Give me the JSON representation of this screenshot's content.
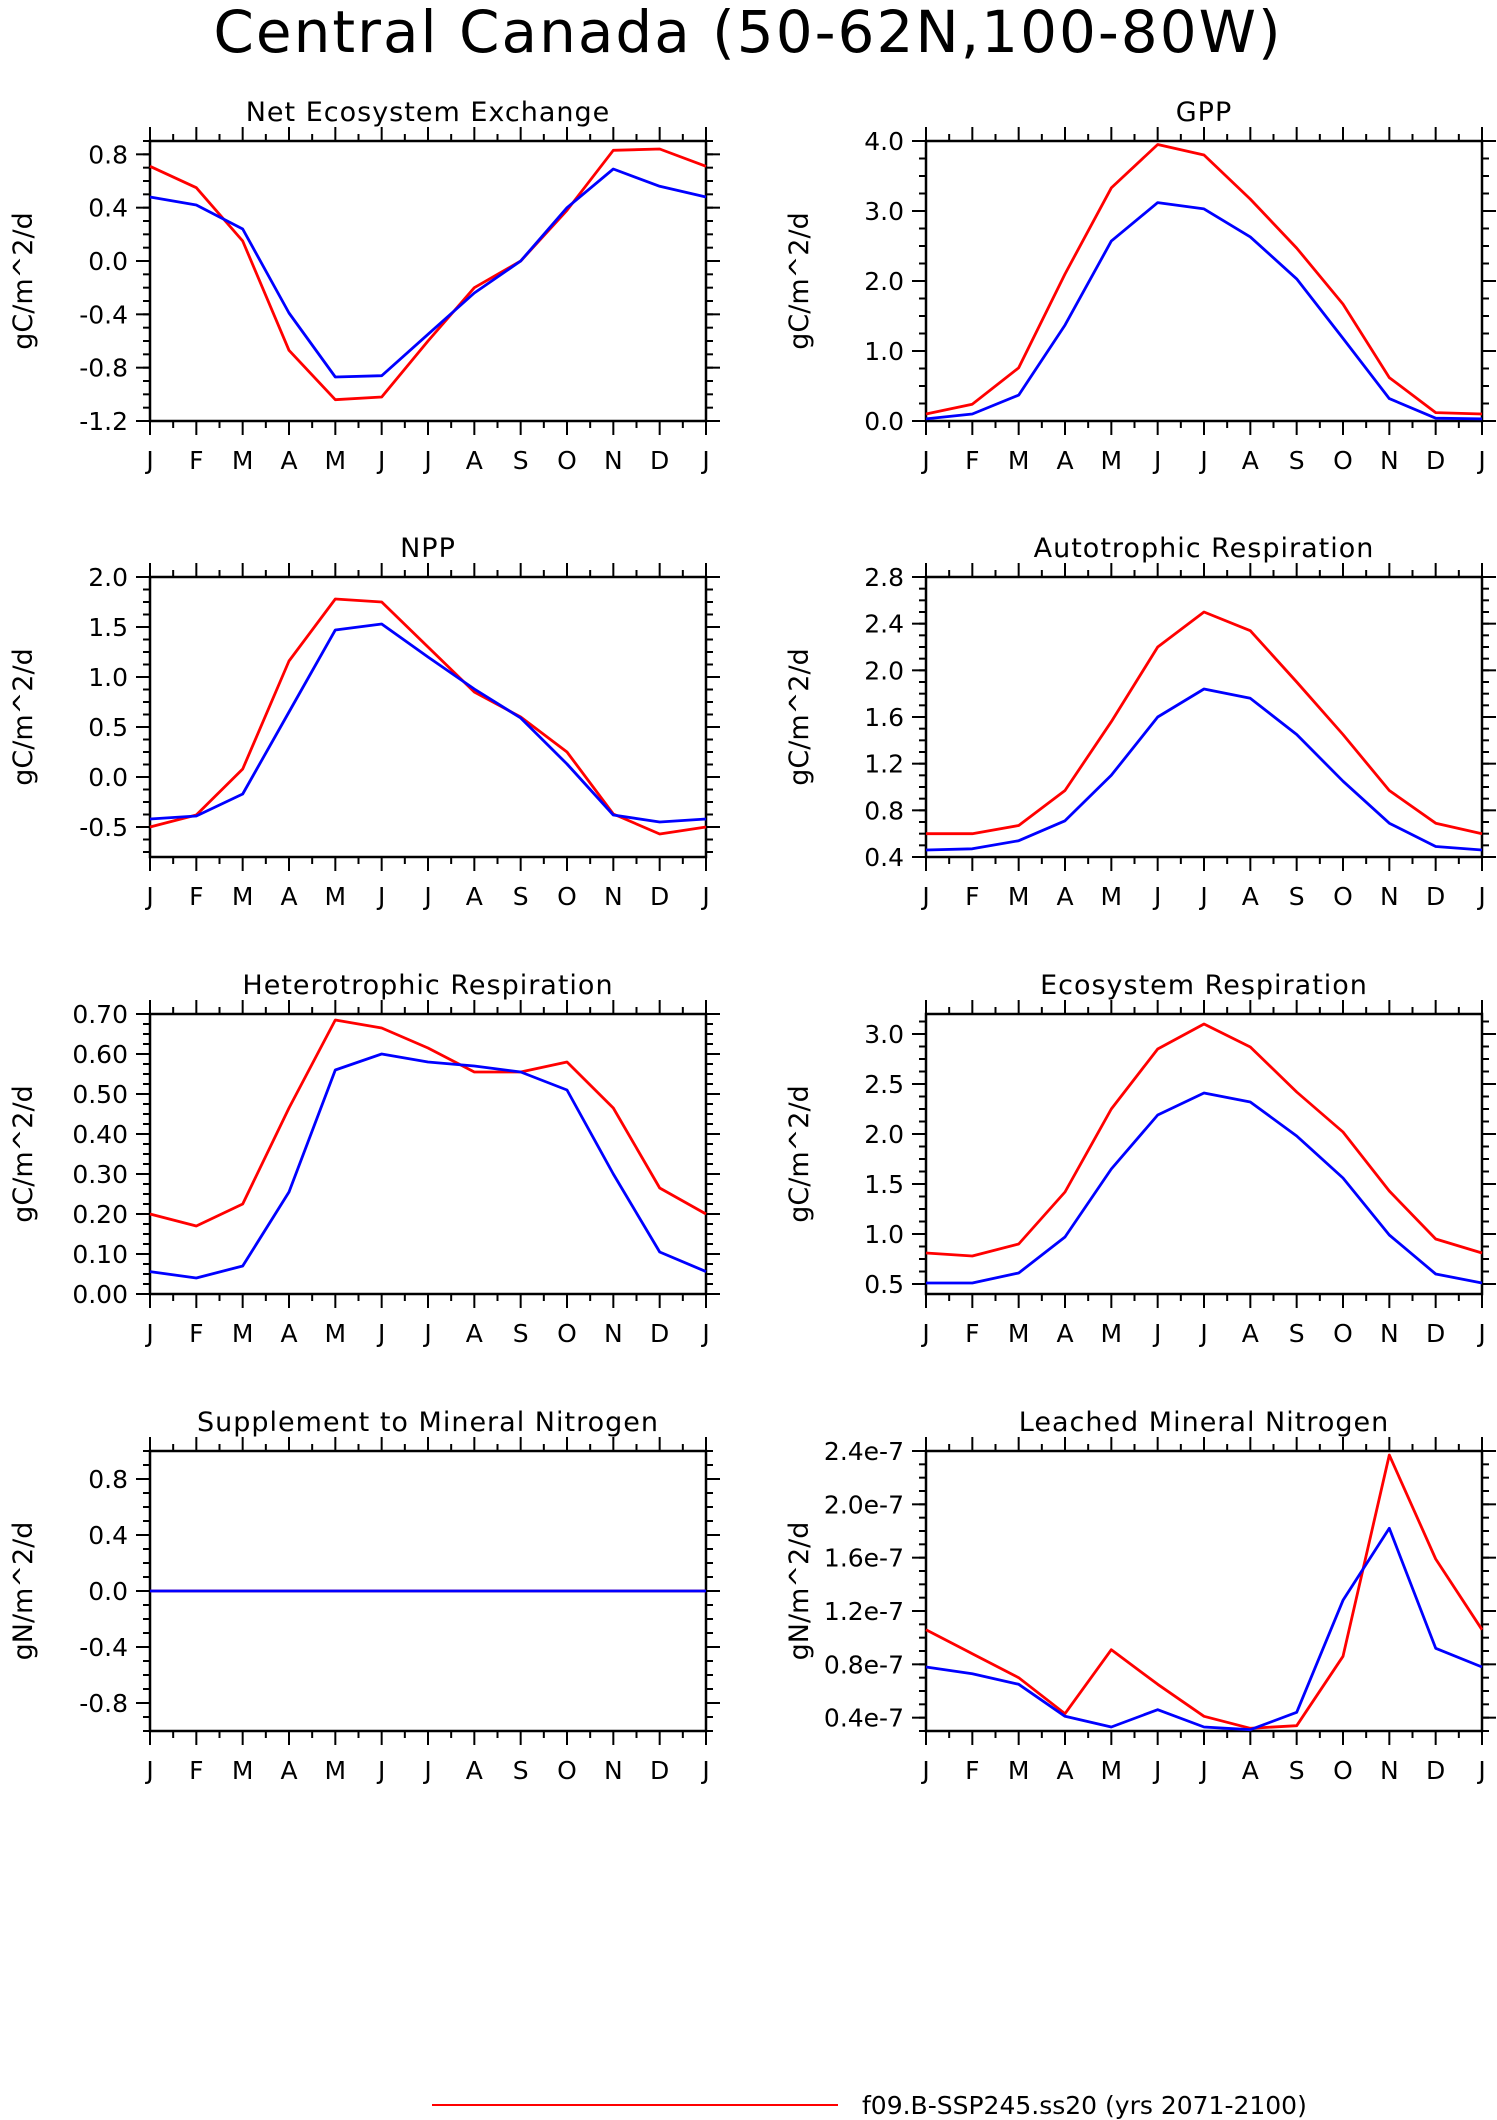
{
  "figure": {
    "title": "Central Canada (50-62N,100-80W)",
    "legend": [
      {
        "label": "f09.B-SSP245.ss20 (yrs 2071-2100)",
        "color": "#ff0000"
      }
    ]
  },
  "colors": {
    "case1": "#ff0000",
    "case2": "#0000ff"
  },
  "chart_data": [
    {
      "type": "line",
      "title": "Net Ecosystem Exchange",
      "ylabel": "gC/m^2/d",
      "x": [
        "J",
        "F",
        "M",
        "A",
        "M",
        "J",
        "J",
        "A",
        "S",
        "O",
        "N",
        "D",
        "J"
      ],
      "ylim": [
        -1.2,
        0.9
      ],
      "yticks": [
        -1.2,
        -0.8,
        -0.4,
        0.0,
        0.4,
        0.8
      ],
      "ytick_labels": [
        "-1.2",
        "-0.8",
        "-0.4",
        "0.0",
        "0.4",
        "0.8"
      ],
      "series": [
        {
          "color": "#ff0000",
          "values": [
            0.71,
            0.55,
            0.15,
            -0.67,
            -1.04,
            -1.02,
            -0.6,
            -0.2,
            0.0,
            0.38,
            0.83,
            0.84,
            0.71
          ]
        },
        {
          "color": "#0000ff",
          "values": [
            0.48,
            0.42,
            0.24,
            -0.39,
            -0.87,
            -0.86,
            -0.55,
            -0.24,
            0.0,
            0.4,
            0.69,
            0.56,
            0.48
          ]
        }
      ]
    },
    {
      "type": "line",
      "title": "GPP",
      "ylabel": "gC/m^2/d",
      "x": [
        "J",
        "F",
        "M",
        "A",
        "M",
        "J",
        "J",
        "A",
        "S",
        "O",
        "N",
        "D",
        "J"
      ],
      "ylim": [
        0,
        4.0
      ],
      "yticks": [
        0,
        1,
        2,
        3,
        4
      ],
      "ytick_labels": [
        "0.0",
        "1.0",
        "2.0",
        "3.0",
        "4.0"
      ],
      "series": [
        {
          "color": "#ff0000",
          "values": [
            0.1,
            0.24,
            0.76,
            2.1,
            3.33,
            3.95,
            3.8,
            3.17,
            2.47,
            1.67,
            0.62,
            0.12,
            0.1
          ]
        },
        {
          "color": "#0000ff",
          "values": [
            0.03,
            0.1,
            0.37,
            1.37,
            2.57,
            3.12,
            3.03,
            2.63,
            2.03,
            1.18,
            0.32,
            0.04,
            0.03
          ]
        }
      ]
    },
    {
      "type": "line",
      "title": "NPP",
      "ylabel": "gC/m^2/d",
      "x": [
        "J",
        "F",
        "M",
        "A",
        "M",
        "J",
        "J",
        "A",
        "S",
        "O",
        "N",
        "D",
        "J"
      ],
      "ylim": [
        -0.8,
        2.0
      ],
      "yticks": [
        -0.5,
        0.0,
        0.5,
        1.0,
        1.5,
        2.0
      ],
      "ytick_labels": [
        "-0.5",
        "0.0",
        "0.5",
        "1.0",
        "1.5",
        "2.0"
      ],
      "series": [
        {
          "color": "#ff0000",
          "values": [
            -0.5,
            -0.38,
            0.08,
            1.16,
            1.78,
            1.75,
            1.3,
            0.85,
            0.6,
            0.25,
            -0.37,
            -0.57,
            -0.5
          ]
        },
        {
          "color": "#0000ff",
          "values": [
            -0.42,
            -0.39,
            -0.17,
            0.65,
            1.47,
            1.53,
            1.2,
            0.88,
            0.59,
            0.13,
            -0.38,
            -0.45,
            -0.42
          ]
        }
      ]
    },
    {
      "type": "line",
      "title": "Autotrophic Respiration",
      "ylabel": "gC/m^2/d",
      "x": [
        "J",
        "F",
        "M",
        "A",
        "M",
        "J",
        "J",
        "A",
        "S",
        "O",
        "N",
        "D",
        "J"
      ],
      "ylim": [
        0.4,
        2.8
      ],
      "yticks": [
        0.4,
        0.8,
        1.2,
        1.6,
        2.0,
        2.4,
        2.8
      ],
      "ytick_labels": [
        "0.4",
        "0.8",
        "1.2",
        "1.6",
        "2.0",
        "2.4",
        "2.8"
      ],
      "series": [
        {
          "color": "#ff0000",
          "values": [
            0.6,
            0.6,
            0.67,
            0.97,
            1.56,
            2.2,
            2.5,
            2.34,
            1.9,
            1.45,
            0.97,
            0.69,
            0.6
          ]
        },
        {
          "color": "#0000ff",
          "values": [
            0.46,
            0.47,
            0.54,
            0.71,
            1.1,
            1.6,
            1.84,
            1.76,
            1.45,
            1.05,
            0.69,
            0.49,
            0.46
          ]
        }
      ]
    },
    {
      "type": "line",
      "title": "Heterotrophic Respiration",
      "ylabel": "gC/m^2/d",
      "x": [
        "J",
        "F",
        "M",
        "A",
        "M",
        "J",
        "J",
        "A",
        "S",
        "O",
        "N",
        "D",
        "J"
      ],
      "ylim": [
        0.0,
        0.7
      ],
      "yticks": [
        0.0,
        0.1,
        0.2,
        0.3,
        0.4,
        0.5,
        0.6,
        0.7
      ],
      "ytick_labels": [
        "0.00",
        "0.10",
        "0.20",
        "0.30",
        "0.40",
        "0.50",
        "0.60",
        "0.70"
      ],
      "series": [
        {
          "color": "#ff0000",
          "values": [
            0.2,
            0.17,
            0.225,
            0.465,
            0.685,
            0.665,
            0.615,
            0.555,
            0.555,
            0.58,
            0.465,
            0.265,
            0.2
          ]
        },
        {
          "color": "#0000ff",
          "values": [
            0.056,
            0.04,
            0.07,
            0.255,
            0.56,
            0.6,
            0.58,
            0.57,
            0.555,
            0.51,
            0.3,
            0.105,
            0.056
          ]
        }
      ]
    },
    {
      "type": "line",
      "title": "Ecosystem Respiration",
      "ylabel": "gC/m^2/d",
      "x": [
        "J",
        "F",
        "M",
        "A",
        "M",
        "J",
        "J",
        "A",
        "S",
        "O",
        "N",
        "D",
        "J"
      ],
      "ylim": [
        0.4,
        3.2
      ],
      "yticks": [
        0.5,
        1.0,
        1.5,
        2.0,
        2.5,
        3.0
      ],
      "ytick_labels": [
        "0.5",
        "1.0",
        "1.5",
        "2.0",
        "2.5",
        "3.0"
      ],
      "series": [
        {
          "color": "#ff0000",
          "values": [
            0.81,
            0.78,
            0.9,
            1.42,
            2.25,
            2.85,
            3.1,
            2.87,
            2.42,
            2.02,
            1.43,
            0.95,
            0.81
          ]
        },
        {
          "color": "#0000ff",
          "values": [
            0.51,
            0.51,
            0.61,
            0.97,
            1.65,
            2.19,
            2.41,
            2.32,
            1.98,
            1.56,
            0.99,
            0.6,
            0.51
          ]
        }
      ]
    },
    {
      "type": "line",
      "title": "Supplement to Mineral Nitrogen",
      "ylabel": "gN/m^2/d",
      "x": [
        "J",
        "F",
        "M",
        "A",
        "M",
        "J",
        "J",
        "A",
        "S",
        "O",
        "N",
        "D",
        "J"
      ],
      "ylim": [
        -1.0,
        1.0
      ],
      "yticks": [
        -0.8,
        -0.4,
        0.0,
        0.4,
        0.8
      ],
      "ytick_labels": [
        "-0.8",
        "-0.4",
        "0.0",
        "0.4",
        "0.8"
      ],
      "series": [
        {
          "color": "#ff0000",
          "values": [
            0,
            0,
            0,
            0,
            0,
            0,
            0,
            0,
            0,
            0,
            0,
            0,
            0
          ]
        },
        {
          "color": "#0000ff",
          "values": [
            0,
            0,
            0,
            0,
            0,
            0,
            0,
            0,
            0,
            0,
            0,
            0,
            0
          ]
        }
      ]
    },
    {
      "type": "line",
      "title": "Leached Mineral Nitrogen",
      "ylabel": "gN/m^2/d",
      "x": [
        "J",
        "F",
        "M",
        "A",
        "M",
        "J",
        "J",
        "A",
        "S",
        "O",
        "N",
        "D",
        "J"
      ],
      "ylim": [
        3e-08,
        2.4e-07
      ],
      "yticks": [
        4e-08,
        8e-08,
        1.2e-07,
        1.6e-07,
        2e-07,
        2.4e-07
      ],
      "ytick_labels": [
        "0.4e-7",
        "0.8e-7",
        "1.2e-7",
        "1.6e-7",
        "2.0e-7",
        "2.4e-7"
      ],
      "series": [
        {
          "color": "#ff0000",
          "values": [
            1.06e-07,
            8.8e-08,
            7e-08,
            4.3e-08,
            9.1e-08,
            6.5e-08,
            4.1e-08,
            3.2e-08,
            3.4e-08,
            8.6e-08,
            2.37e-07,
            1.59e-07,
            1.06e-07
          ]
        },
        {
          "color": "#0000ff",
          "values": [
            7.8e-08,
            7.3e-08,
            6.5e-08,
            4.1e-08,
            3.3e-08,
            4.6e-08,
            3.3e-08,
            3.1e-08,
            4.4e-08,
            1.28e-07,
            1.82e-07,
            9.2e-08,
            7.8e-08
          ]
        }
      ]
    }
  ]
}
